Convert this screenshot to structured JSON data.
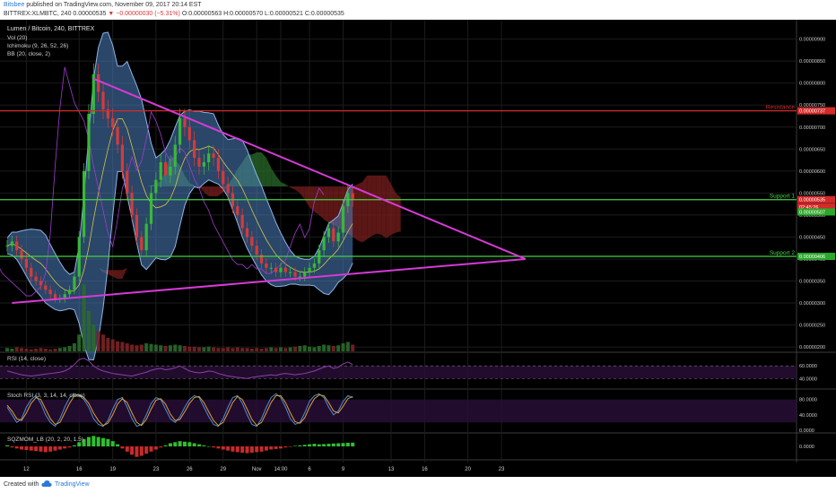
{
  "header": {
    "author": "Bitsbee",
    "published_text": "published on TradingView.com, November 09, 2017 20:14 EST",
    "symbol_line": "BITTREX:XLMBTC, 240  0.00000535",
    "change_text": "▼ −0.00000030 (−5.31%)",
    "ohlc_text": "O:0.00000563 H:0.00000570 L:0.00000521 C:0.00000535"
  },
  "legend": {
    "title": "Lumen / Bitcoin, 240, BITTREX",
    "items": [
      "Vol (20)",
      "Ichimoku (9, 26, 52, 26)",
      "BB (20, close, 2)"
    ]
  },
  "footer": {
    "created_with": "Created with",
    "brand": "TradingView"
  },
  "colors": {
    "bg": "#000000",
    "up": "#38b838",
    "down": "#d63a3a",
    "triangle": "#d63ad6",
    "bollinger_fill": "#4d7fbf",
    "kumo_bull": "#2a6b2a",
    "kumo_bear": "#7a1e1e",
    "resistance": "#d42a2a",
    "support": "#46d046",
    "rsi_line": "#8a40a8",
    "stoch_k": "#4a8fd8",
    "stoch_d": "#e0a030"
  },
  "chart_data": {
    "type": "line",
    "title": "Lumen / Bitcoin, 240, BITTREX",
    "y_axis": {
      "ticks": [
        9e-06,
        8.5e-06,
        8e-06,
        7.5e-06,
        7e-06,
        6.5e-06,
        6e-06,
        5.5e-06,
        5e-06,
        4.5e-06,
        4e-06,
        3.5e-06,
        3e-06,
        2.5e-06,
        2e-06
      ],
      "tick_labels": [
        "0.00000900",
        "0.00000850",
        "0.00000800",
        "0.00000750",
        "0.00000700",
        "0.00000650",
        "0.00000600",
        "0.00000550",
        "0.00000500",
        "0.00000450",
        "0.00000400",
        "0.00000350",
        "0.00000300",
        "0.00000250",
        "0.00000200"
      ],
      "ylim": [
        1.9e-06,
        9.4e-06
      ]
    },
    "x_axis": {
      "tick_labels": [
        "12",
        "16",
        "19",
        "23",
        "26",
        "29",
        "Nov",
        "14:00",
        "6",
        "9",
        "13",
        "16",
        "20",
        "23"
      ],
      "tick_index": [
        4,
        15,
        22,
        31,
        38,
        45,
        52,
        57,
        63,
        70,
        80,
        87,
        96,
        103
      ]
    },
    "price_labels": [
      {
        "text": "0.00000737",
        "value": 7.37e-06,
        "color": "#d42a2a"
      },
      {
        "text": "0.00000535",
        "value": 5.35e-06,
        "color": "#d42a2a"
      },
      {
        "text": "02:45:26",
        "value": 5.18e-06,
        "color": "#d42a2a"
      },
      {
        "text": "0.00000507",
        "value": 5.07e-06,
        "color": "#2aa82a"
      },
      {
        "text": "0.00000406",
        "value": 4.06e-06,
        "color": "#2aa82a"
      }
    ],
    "levels": [
      {
        "name": "Resistance",
        "value": 7.37e-06,
        "color": "#d42a2a"
      },
      {
        "name": "Support 1",
        "value": 5.35e-06,
        "color": "#46d046"
      },
      {
        "name": "Support 2",
        "value": 4.06e-06,
        "color": "#46d046"
      }
    ],
    "price_series": {
      "name": "XLMBTC close",
      "values": [
        4.3e-06,
        4.4e-06,
        4.2e-06,
        4e-06,
        3.8e-06,
        3.6e-06,
        3.5e-06,
        3.4e-06,
        3.3e-06,
        3.2e-06,
        3.1e-06,
        3.1e-06,
        3.2e-06,
        3.3e-06,
        3.6e-06,
        4.5e-06,
        6e-06,
        7.3e-06,
        8.2e-06,
        7.8e-06,
        7.4e-06,
        7.2e-06,
        7e-06,
        6.6e-06,
        6e-06,
        5.5e-06,
        5e-06,
        4.5e-06,
        4.2e-06,
        4.8e-06,
        5.5e-06,
        5.8e-06,
        6.2e-06,
        5.9e-06,
        6.1e-06,
        6.6e-06,
        7.2e-06,
        7e-06,
        6.7e-06,
        6.3e-06,
        6.1e-06,
        6.2e-06,
        6.4e-06,
        6.3e-06,
        6e-06,
        5.7e-06,
        5.5e-06,
        5.2e-06,
        5e-06,
        4.7e-06,
        4.5e-06,
        4.3e-06,
        4.1e-06,
        3.9e-06,
        3.8e-06,
        3.8e-06,
        3.7e-06,
        3.8e-06,
        3.7e-06,
        3.7e-06,
        3.6e-06,
        3.6e-06,
        3.7e-06,
        3.8e-06,
        3.9e-06,
        4.2e-06,
        4.5e-06,
        4.7e-06,
        4.4e-06,
        4.6e-06,
        5.2e-06,
        5.5e-06,
        5.35e-06
      ]
    },
    "triangle": {
      "upper": [
        [
          18,
          8.1e-06
        ],
        [
          108,
          4e-06
        ]
      ],
      "lower": [
        [
          1,
          3e-06
        ],
        [
          108,
          4e-06
        ]
      ]
    },
    "volume": {
      "ylim": [
        0,
        100
      ],
      "values": [
        5,
        4,
        6,
        5,
        4,
        3,
        4,
        5,
        4,
        3,
        4,
        5,
        6,
        8,
        12,
        25,
        100,
        60,
        40,
        30,
        25,
        20,
        18,
        15,
        14,
        12,
        10,
        9,
        10,
        12,
        11,
        10,
        9,
        8,
        9,
        10,
        9,
        8,
        7,
        7,
        6,
        6,
        7,
        6,
        5,
        5,
        6,
        5,
        6,
        5,
        5,
        4,
        5,
        4,
        5,
        6,
        5,
        6,
        5,
        6,
        7,
        8,
        9,
        7,
        6,
        8,
        10,
        9,
        8,
        9,
        12,
        14,
        10
      ]
    },
    "rsi": {
      "label": "RSI (14, close)",
      "tick_labels": [
        "60.0000",
        "40.0000"
      ],
      "ticks": [
        60,
        40
      ],
      "ylim": [
        25,
        80
      ],
      "values": [
        52,
        50,
        48,
        46,
        45,
        44,
        45,
        46,
        47,
        48,
        49,
        50,
        52,
        56,
        62,
        70,
        72,
        68,
        60,
        55,
        52,
        50,
        48,
        47,
        46,
        45,
        44,
        46,
        48,
        50,
        53,
        55,
        56,
        54,
        55,
        57,
        60,
        56,
        52,
        50,
        49,
        50,
        52,
        51,
        48,
        46,
        44,
        43,
        42,
        41,
        40,
        42,
        43,
        44,
        45,
        46,
        45,
        47,
        48,
        47,
        46,
        47,
        48,
        50,
        52,
        55,
        58,
        60,
        56,
        58,
        63,
        66,
        62
      ]
    },
    "stoch_rsi": {
      "label": "Stoch RSI (3, 3, 14, 14, close)",
      "tick_labels": [
        "80.0000",
        "40.0000",
        "0.0000"
      ],
      "ticks": [
        80,
        40,
        0
      ],
      "ylim": [
        -5,
        105
      ],
      "k": [
        60,
        40,
        20,
        30,
        60,
        80,
        90,
        70,
        40,
        20,
        10,
        30,
        60,
        85,
        95,
        90,
        80,
        60,
        30,
        15,
        10,
        25,
        55,
        80,
        85,
        60,
        30,
        10,
        15,
        40,
        70,
        85,
        80,
        55,
        30,
        20,
        35,
        60,
        80,
        90,
        85,
        60,
        35,
        15,
        10,
        30,
        60,
        85,
        90,
        70,
        40,
        15,
        10,
        30,
        60,
        85,
        95,
        85,
        60,
        30,
        15,
        20,
        45,
        75,
        90,
        95,
        85,
        60,
        40,
        50,
        75,
        90,
        85
      ],
      "d": [
        65,
        50,
        30,
        25,
        45,
        70,
        85,
        80,
        55,
        30,
        15,
        20,
        45,
        70,
        90,
        92,
        85,
        70,
        45,
        25,
        12,
        18,
        40,
        68,
        82,
        72,
        45,
        20,
        12,
        28,
        55,
        78,
        82,
        68,
        42,
        25,
        28,
        48,
        70,
        85,
        88,
        72,
        48,
        25,
        12,
        20,
        45,
        72,
        88,
        80,
        55,
        28,
        12,
        20,
        45,
        72,
        90,
        90,
        72,
        45,
        22,
        18,
        32,
        60,
        82,
        92,
        90,
        72,
        50,
        45,
        62,
        82,
        88
      ]
    },
    "sqzmom": {
      "label": "SQZMOM_LB (20, 2, 20, 1.5)",
      "tick_labels": [
        "0.0000"
      ],
      "ticks": [
        0
      ],
      "ylim": [
        -1.2,
        1.2
      ],
      "values": [
        0.1,
        -0.1,
        -0.2,
        -0.3,
        -0.35,
        -0.4,
        -0.45,
        -0.5,
        -0.55,
        -0.5,
        -0.4,
        -0.3,
        -0.2,
        -0.1,
        0.1,
        0.4,
        0.7,
        0.9,
        1.0,
        0.9,
        0.8,
        0.7,
        0.5,
        0.2,
        -0.2,
        -0.5,
        -0.8,
        -1.0,
        -0.9,
        -0.7,
        -0.5,
        -0.3,
        -0.1,
        0.1,
        0.3,
        0.4,
        0.5,
        0.45,
        0.4,
        0.3,
        0.2,
        0.1,
        0.0,
        -0.1,
        -0.2,
        -0.3,
        -0.4,
        -0.5,
        -0.55,
        -0.6,
        -0.65,
        -0.6,
        -0.55,
        -0.5,
        -0.4,
        -0.3,
        -0.25,
        -0.2,
        -0.1,
        -0.05,
        0.05,
        0.1,
        0.15,
        0.2,
        0.25,
        0.2,
        0.22,
        0.25,
        0.28,
        0.3,
        0.32,
        0.35,
        0.36
      ]
    }
  }
}
